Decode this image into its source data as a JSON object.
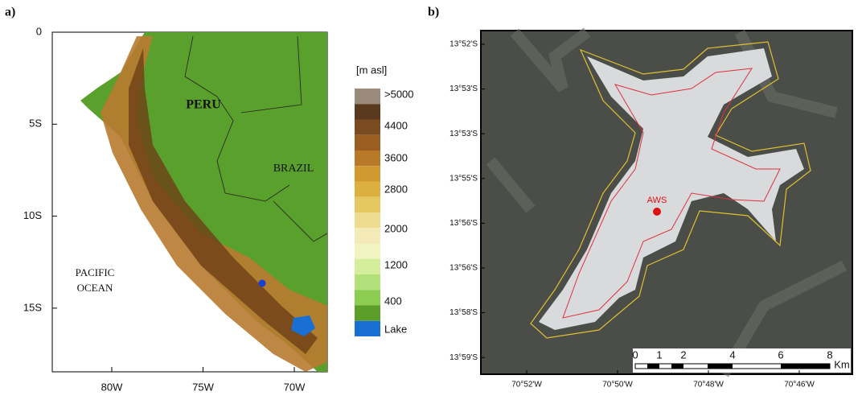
{
  "panel_a": {
    "label": "a)",
    "y_labels": [
      "0",
      "5S",
      "10S",
      "15S"
    ],
    "x_labels": [
      "80W",
      "75W",
      "70W"
    ],
    "places": {
      "peru": "PERU",
      "brazil": "BRAZIL",
      "ocean": [
        "PACIFIC",
        "OCEAN"
      ]
    },
    "legend": {
      "title": "[m asl]",
      "labels": [
        ">5000",
        "4400",
        "3600",
        "2800",
        "2000",
        "1200",
        "400",
        "Lake"
      ]
    }
  },
  "panel_b": {
    "label": "b)",
    "y_labels": [
      "13°52'S",
      "13°53'S",
      "13°53'S",
      "13°55'S",
      "13°56'S",
      "13°56'S",
      "13°58'S",
      "13°59'S"
    ],
    "x_labels": [
      "70°52'W",
      "70°50'W",
      "70°48'W",
      "70°46'W"
    ],
    "station": "AWS",
    "scale_bar": {
      "labels": [
        "0",
        "1",
        "2",
        "4",
        "6",
        "8"
      ],
      "unit": "Km"
    }
  }
}
